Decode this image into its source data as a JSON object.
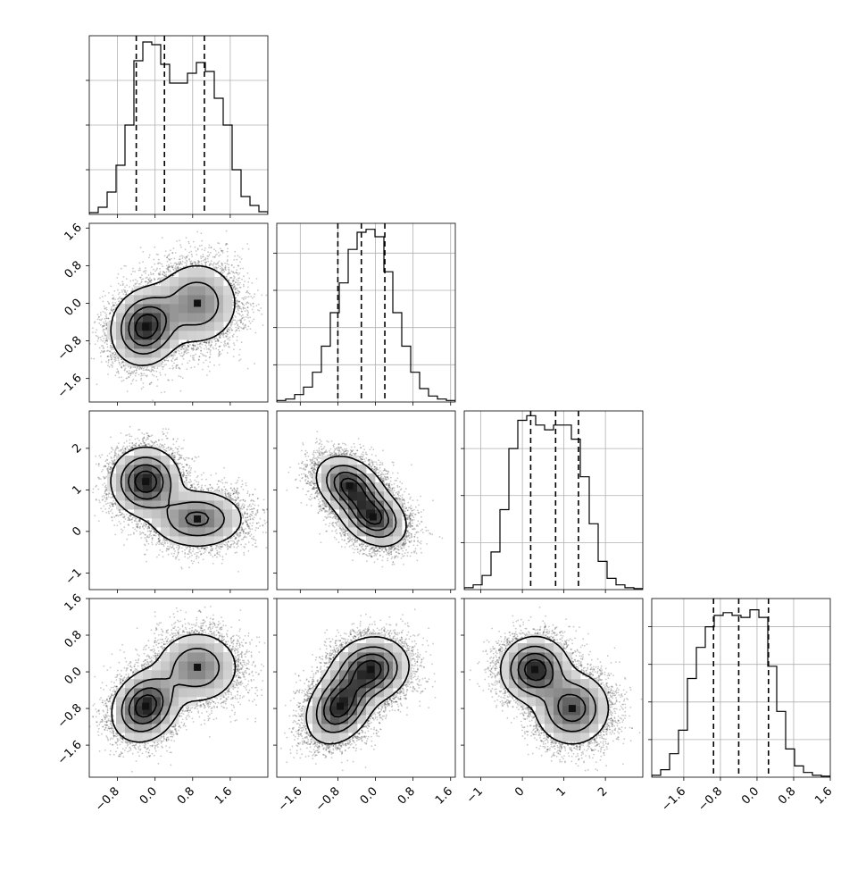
{
  "chart_data": {
    "type": "corner",
    "title": "",
    "parameters": [
      {
        "label": "",
        "range": [
          -1.4,
          2.4
        ],
        "ticks": [
          -0.8,
          0.0,
          0.8,
          1.6
        ],
        "tick_labels": [
          "−0.8",
          "0.0",
          "0.8",
          "1.6"
        ],
        "quantiles": [
          -0.4,
          0.2,
          1.05
        ]
      },
      {
        "label": "",
        "range": [
          -2.1,
          1.7
        ],
        "ticks": [
          -1.6,
          -0.8,
          0.0,
          0.8,
          1.6
        ],
        "tick_labels": [
          "−1.6",
          "−0.8",
          "0.0",
          "0.8",
          "1.6"
        ],
        "quantiles": [
          -0.8,
          -0.3,
          0.2
        ]
      },
      {
        "label": "",
        "range": [
          -1.4,
          2.9
        ],
        "ticks": [
          -1,
          0,
          1,
          2
        ],
        "tick_labels": [
          "−1",
          "0",
          "1",
          "2"
        ],
        "quantiles": [
          0.2,
          0.8,
          1.35
        ]
      },
      {
        "label": "",
        "range": [
          -2.3,
          1.6
        ],
        "ticks": [
          -1.6,
          -0.8,
          0.0,
          0.8,
          1.6
        ],
        "tick_labels": [
          "−1.6",
          "−0.8",
          "0.0",
          "0.8",
          "1.6"
        ],
        "quantiles": [
          -0.95,
          -0.4,
          0.25
        ]
      }
    ],
    "histograms": [
      {
        "param": 0,
        "bin_start": -1.4,
        "bin_width": 0.19,
        "counts": [
          2,
          8,
          25,
          55,
          100,
          172,
          193,
          190,
          168,
          147,
          147,
          158,
          170,
          160,
          130,
          100,
          50,
          20,
          10,
          3
        ],
        "ylim": [
          0,
          200
        ],
        "yticks": [
          50,
          100,
          150
        ]
      },
      {
        "param": 1,
        "bin_start": -2.1,
        "bin_width": 0.19,
        "counts": [
          2,
          4,
          10,
          20,
          40,
          75,
          120,
          160,
          205,
          228,
          232,
          222,
          175,
          120,
          75,
          40,
          18,
          8,
          4,
          2
        ],
        "ylim": [
          0,
          240
        ],
        "yticks": [
          50,
          100,
          150,
          200
        ]
      },
      {
        "param": 2,
        "bin_start": -1.4,
        "bin_width": 0.215,
        "counts": [
          2,
          5,
          15,
          40,
          85,
          150,
          180,
          185,
          175,
          170,
          175,
          175,
          160,
          120,
          70,
          30,
          12,
          5,
          2,
          1
        ],
        "ylim": [
          0,
          190
        ],
        "yticks": [
          50,
          100,
          150
        ]
      },
      {
        "param": 3,
        "bin_start": -2.3,
        "bin_width": 0.195,
        "counts": [
          2,
          8,
          25,
          50,
          105,
          138,
          160,
          172,
          175,
          172,
          170,
          178,
          170,
          118,
          70,
          30,
          12,
          5,
          2,
          1
        ],
        "ylim": [
          0,
          190
        ],
        "yticks": [
          40,
          80,
          120,
          160
        ]
      }
    ],
    "pairs": [
      {
        "x": 0,
        "y": 1,
        "modes": [
          {
            "x": -0.2,
            "y": -0.5,
            "sx": 0.36,
            "sy": 0.4,
            "rho": 0.1,
            "w": 0.55
          },
          {
            "x": 0.9,
            "y": 0.0,
            "sx": 0.45,
            "sy": 0.45,
            "rho": 0.0,
            "w": 0.45
          }
        ]
      },
      {
        "x": 0,
        "y": 2,
        "modes": [
          {
            "x": -0.2,
            "y": 1.2,
            "sx": 0.36,
            "sy": 0.4,
            "rho": 0.0,
            "w": 0.55
          },
          {
            "x": 0.9,
            "y": 0.3,
            "sx": 0.5,
            "sy": 0.35,
            "rho": 0.0,
            "w": 0.45
          }
        ]
      },
      {
        "x": 1,
        "y": 2,
        "modes": [
          {
            "x": -0.55,
            "y": 1.1,
            "sx": 0.35,
            "sy": 0.35,
            "rho": -0.3,
            "w": 0.5
          },
          {
            "x": -0.05,
            "y": 0.35,
            "sx": 0.35,
            "sy": 0.35,
            "rho": -0.3,
            "w": 0.5
          }
        ]
      },
      {
        "x": 0,
        "y": 3,
        "modes": [
          {
            "x": -0.2,
            "y": -0.75,
            "sx": 0.35,
            "sy": 0.38,
            "rho": 0.2,
            "w": 0.55
          },
          {
            "x": 0.9,
            "y": 0.1,
            "sx": 0.45,
            "sy": 0.4,
            "rho": 0.0,
            "w": 0.45
          }
        ]
      },
      {
        "x": 1,
        "y": 3,
        "modes": [
          {
            "x": -0.75,
            "y": -0.75,
            "sx": 0.35,
            "sy": 0.4,
            "rho": 0.3,
            "w": 0.5
          },
          {
            "x": -0.1,
            "y": 0.05,
            "sx": 0.4,
            "sy": 0.35,
            "rho": 0.1,
            "w": 0.5
          }
        ]
      },
      {
        "x": 2,
        "y": 3,
        "modes": [
          {
            "x": 0.3,
            "y": 0.05,
            "sx": 0.4,
            "sy": 0.35,
            "rho": 0.0,
            "w": 0.5
          },
          {
            "x": 1.2,
            "y": -0.8,
            "sx": 0.45,
            "sy": 0.4,
            "rho": 0.0,
            "w": 0.5
          }
        ]
      }
    ],
    "density_levels": [
      0.12,
      0.35,
      0.6,
      0.82
    ],
    "grid": true,
    "legend": "none"
  }
}
